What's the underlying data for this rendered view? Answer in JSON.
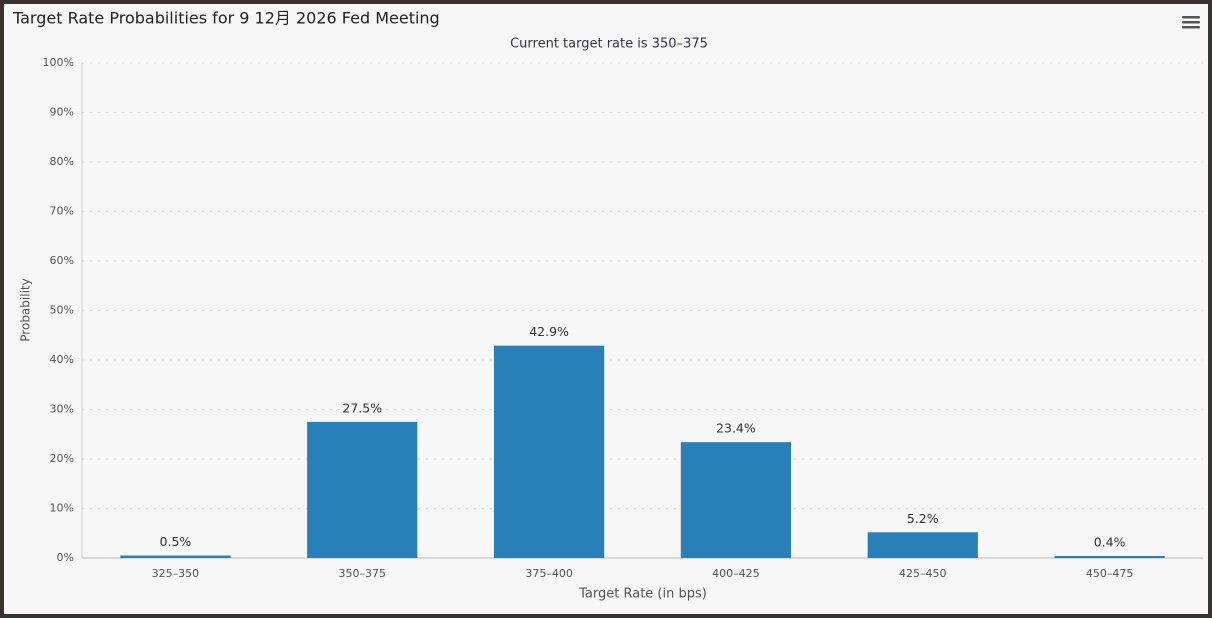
{
  "chart_data": {
    "type": "bar",
    "title": "Target Rate Probabilities for 9 12月 2026 Fed Meeting",
    "subtitle": "Current target rate is 350–375",
    "y_label": "Probability",
    "x_label": "Target Rate (in bps)",
    "categories": [
      "325–350",
      "350–375",
      "375–400",
      "400–425",
      "425–450",
      "450–475"
    ],
    "values": [
      0.5,
      27.5,
      42.9,
      23.4,
      5.2,
      0.4
    ],
    "value_labels": [
      "0.5%",
      "27.5%",
      "42.9%",
      "23.4%",
      "5.2%",
      "0.4%"
    ],
    "color": "#2980b9",
    "ylim": [
      0,
      100
    ],
    "yticks": [
      {
        "value": 0,
        "label": "0%"
      },
      {
        "value": 10,
        "label": "10%"
      },
      {
        "value": 20,
        "label": "20%"
      },
      {
        "value": 30,
        "label": "30%"
      },
      {
        "value": 40,
        "label": "40%"
      },
      {
        "value": 50,
        "label": "50%"
      },
      {
        "value": 60,
        "label": "60%"
      },
      {
        "value": 70,
        "label": "70%"
      },
      {
        "value": 80,
        "label": "80%"
      },
      {
        "value": 90,
        "label": "90%"
      },
      {
        "value": 100,
        "label": "100%"
      }
    ],
    "grid": true
  }
}
